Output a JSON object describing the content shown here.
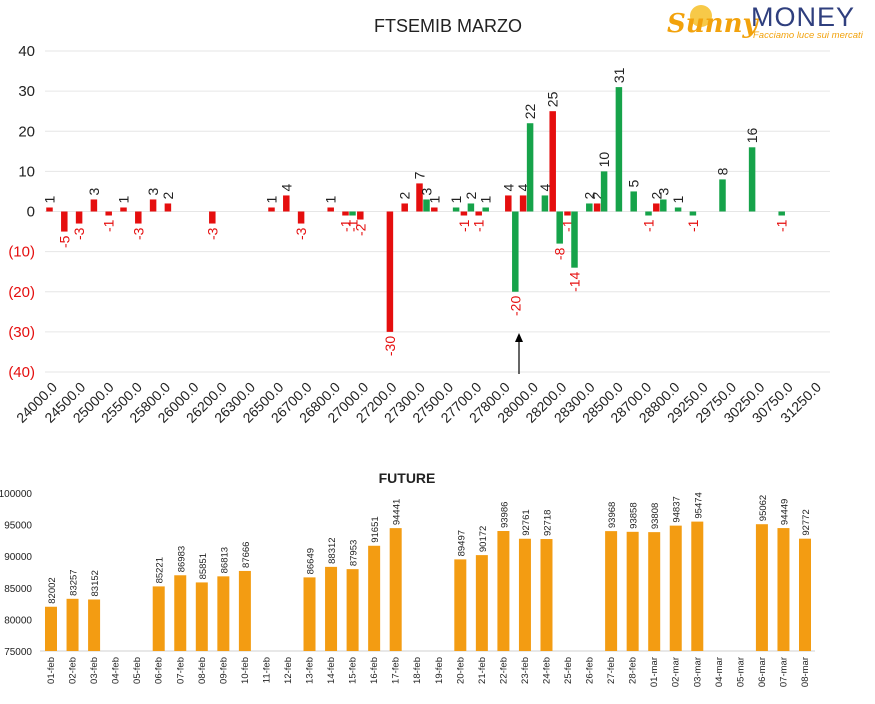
{
  "logo": {
    "brand_part1": "Sunny",
    "brand_part2": "MONEY",
    "tagline": "Facciamo luce sui mercati"
  },
  "colors": {
    "positive": "#16a34a",
    "negative": "#e50e0e",
    "future_bar": "#f39c12",
    "text": "#222222",
    "grid": "#e6e6e6"
  },
  "chart_data": [
    {
      "type": "bar",
      "title": "FTSEMIB MARZO",
      "xlabel": "",
      "ylabel": "",
      "ylim": [
        -40,
        40
      ],
      "y_ticks": [
        "40",
        "30",
        "20",
        "10",
        "0",
        "(10)",
        "(20)",
        "(30)",
        "(40)"
      ],
      "x_tick_labels": [
        "24000.0",
        "24500.0",
        "25000.0",
        "25500.0",
        "25800.0",
        "26000.0",
        "26200.0",
        "26300.0",
        "26500.0",
        "26700.0",
        "26800.0",
        "27000.0",
        "27200.0",
        "27300.0",
        "27500.0",
        "27700.0",
        "27800.0",
        "28000.0",
        "28200.0",
        "28300.0",
        "28500.0",
        "28700.0",
        "28800.0",
        "29250.0",
        "29750.0",
        "30250.0",
        "30750.0",
        "31250.0"
      ],
      "grid": true,
      "annotation": "arrow marker near 27900-28000",
      "series": [
        {
          "color": "red",
          "bars": [
            {
              "slot": 0,
              "value": 1
            },
            {
              "slot": 1,
              "value": -5
            },
            {
              "slot": 2,
              "value": -3
            },
            {
              "slot": 3,
              "value": 3
            },
            {
              "slot": 4,
              "value": -1
            },
            {
              "slot": 5,
              "value": 1
            },
            {
              "slot": 6,
              "value": -3
            },
            {
              "slot": 7,
              "value": 3
            },
            {
              "slot": 8,
              "value": 2
            },
            {
              "slot": 11,
              "value": -3
            },
            {
              "slot": 15,
              "value": 1
            },
            {
              "slot": 16,
              "value": 4
            },
            {
              "slot": 17,
              "value": -3
            },
            {
              "slot": 19,
              "value": 1
            },
            {
              "slot": 20,
              "value": -1
            },
            {
              "slot": 21,
              "value": -2
            },
            {
              "slot": 23,
              "value": -30
            },
            {
              "slot": 24,
              "value": 2
            },
            {
              "slot": 25,
              "value": 7
            },
            {
              "slot": 26,
              "value": 1
            },
            {
              "slot": 28,
              "value": -1
            },
            {
              "slot": 29,
              "value": -1
            },
            {
              "slot": 31,
              "value": 4
            },
            {
              "slot": 32,
              "value": 4
            },
            {
              "slot": 34,
              "value": 25
            },
            {
              "slot": 35,
              "value": -1
            },
            {
              "slot": 37,
              "value": 2
            },
            {
              "slot": 41,
              "value": 2
            }
          ]
        },
        {
          "color": "green",
          "bars": [
            {
              "slot": 20,
              "value": -1
            },
            {
              "slot": 25,
              "value": 3
            },
            {
              "slot": 27,
              "value": 1
            },
            {
              "slot": 28,
              "value": 2
            },
            {
              "slot": 29,
              "value": 1
            },
            {
              "slot": 31,
              "value": -20
            },
            {
              "slot": 32,
              "value": 22
            },
            {
              "slot": 33,
              "value": 4
            },
            {
              "slot": 34,
              "value": -8
            },
            {
              "slot": 35,
              "value": -14
            },
            {
              "slot": 36,
              "value": 2
            },
            {
              "slot": 37,
              "value": 10
            },
            {
              "slot": 38,
              "value": 31
            },
            {
              "slot": 39,
              "value": 5
            },
            {
              "slot": 40,
              "value": -1
            },
            {
              "slot": 41,
              "value": 3
            },
            {
              "slot": 42,
              "value": 1
            },
            {
              "slot": 43,
              "value": -1
            },
            {
              "slot": 45,
              "value": 8
            },
            {
              "slot": 47,
              "value": 16
            },
            {
              "slot": 49,
              "value": -1
            }
          ]
        }
      ]
    },
    {
      "type": "bar",
      "title": "FUTURE",
      "xlabel": "",
      "ylabel": "",
      "ylim": [
        75000,
        100000
      ],
      "y_ticks": [
        "100000",
        "95000",
        "90000",
        "85000",
        "80000",
        "75000"
      ],
      "categories": [
        "01-feb",
        "02-feb",
        "03-feb",
        "04-feb",
        "05-feb",
        "06-feb",
        "07-feb",
        "08-feb",
        "09-feb",
        "10-feb",
        "11-feb",
        "12-feb",
        "13-feb",
        "14-feb",
        "15-feb",
        "16-feb",
        "17-feb",
        "18-feb",
        "19-feb",
        "20-feb",
        "21-feb",
        "22-feb",
        "23-feb",
        "24-feb",
        "25-feb",
        "26-feb",
        "27-feb",
        "28-feb",
        "01-mar",
        "02-mar",
        "03-mar",
        "04-mar",
        "05-mar",
        "06-mar",
        "07-mar",
        "08-mar"
      ],
      "values": [
        82002,
        83257,
        83152,
        null,
        null,
        85221,
        86983,
        85851,
        86813,
        87666,
        null,
        null,
        86649,
        88312,
        87953,
        91651,
        94441,
        null,
        null,
        89497,
        90172,
        93986,
        92761,
        92718,
        null,
        null,
        93968,
        93858,
        93808,
        94837,
        95474,
        null,
        null,
        95062,
        94449,
        92772
      ],
      "grid": false
    }
  ]
}
